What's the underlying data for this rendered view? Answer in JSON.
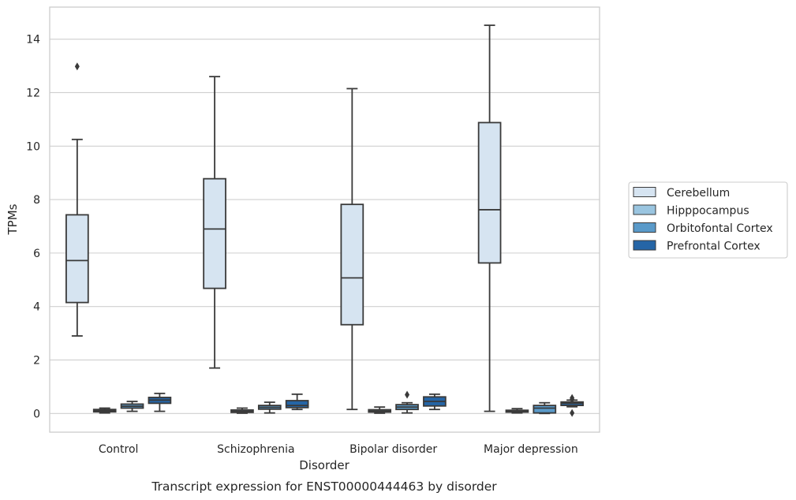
{
  "chart_data": {
    "type": "box",
    "caption": "Transcript expression for ENST00000444463 by disorder",
    "xlabel": "Disorder",
    "ylabel": "TPMs",
    "ylim": [
      -0.7,
      15.2
    ],
    "yticks": [
      0,
      2,
      4,
      6,
      8,
      10,
      12,
      14
    ],
    "grid": "horizontal",
    "legend_position": "right",
    "categories": [
      "Control",
      "Schizophrenia",
      "Bipolar disorder",
      "Major depression"
    ],
    "series": [
      {
        "name": "Cerebellum",
        "color": "#d6e4f1",
        "boxes": [
          {
            "whislo": 2.9,
            "q1": 4.15,
            "med": 5.72,
            "q3": 7.43,
            "whishi": 10.25,
            "fliers": [
              12.98
            ]
          },
          {
            "whislo": 1.7,
            "q1": 4.68,
            "med": 6.9,
            "q3": 8.78,
            "whishi": 12.6,
            "fliers": []
          },
          {
            "whislo": 0.15,
            "q1": 3.32,
            "med": 5.07,
            "q3": 7.82,
            "whishi": 12.15,
            "fliers": []
          },
          {
            "whislo": 0.08,
            "q1": 5.63,
            "med": 7.62,
            "q3": 10.88,
            "whishi": 14.52,
            "fliers": []
          }
        ]
      },
      {
        "name": "Hipppocampus",
        "color": "#9ac5e0",
        "boxes": [
          {
            "whislo": 0.02,
            "q1": 0.06,
            "med": 0.1,
            "q3": 0.15,
            "whishi": 0.2,
            "fliers": []
          },
          {
            "whislo": 0.01,
            "q1": 0.04,
            "med": 0.08,
            "q3": 0.13,
            "whishi": 0.2,
            "fliers": []
          },
          {
            "whislo": 0.01,
            "q1": 0.05,
            "med": 0.09,
            "q3": 0.14,
            "whishi": 0.24,
            "fliers": []
          },
          {
            "whislo": 0.02,
            "q1": 0.05,
            "med": 0.08,
            "q3": 0.12,
            "whishi": 0.18,
            "fliers": []
          }
        ]
      },
      {
        "name": "Orbitofontal Cortex",
        "color": "#5a9ac9",
        "boxes": [
          {
            "whislo": 0.08,
            "q1": 0.2,
            "med": 0.27,
            "q3": 0.35,
            "whishi": 0.45,
            "fliers": []
          },
          {
            "whislo": 0.02,
            "q1": 0.16,
            "med": 0.23,
            "q3": 0.3,
            "whishi": 0.42,
            "fliers": []
          },
          {
            "whislo": 0.02,
            "q1": 0.15,
            "med": 0.24,
            "q3": 0.33,
            "whishi": 0.4,
            "fliers": [
              0.7
            ]
          },
          {
            "whislo": 0.0,
            "q1": 0.02,
            "med": 0.2,
            "q3": 0.3,
            "whishi": 0.4,
            "fliers": []
          }
        ]
      },
      {
        "name": "Prefrontal Cortex",
        "color": "#2565a6",
        "boxes": [
          {
            "whislo": 0.08,
            "q1": 0.38,
            "med": 0.5,
            "q3": 0.6,
            "whishi": 0.75,
            "fliers": []
          },
          {
            "whislo": 0.15,
            "q1": 0.22,
            "med": 0.3,
            "q3": 0.48,
            "whishi": 0.72,
            "fliers": []
          },
          {
            "whislo": 0.15,
            "q1": 0.28,
            "med": 0.45,
            "q3": 0.62,
            "whishi": 0.72,
            "fliers": []
          },
          {
            "whislo": 0.25,
            "q1": 0.3,
            "med": 0.38,
            "q3": 0.43,
            "whishi": 0.5,
            "fliers": [
              0.58,
              0.52,
              0.02
            ]
          }
        ]
      }
    ]
  }
}
